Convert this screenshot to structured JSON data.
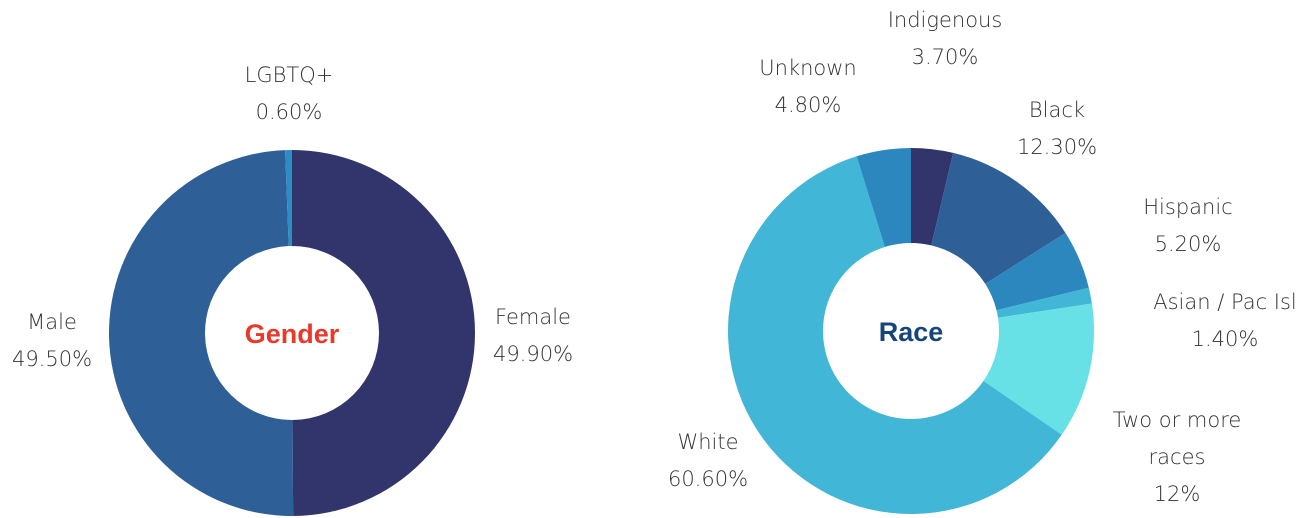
{
  "chart_data": [
    {
      "type": "donut",
      "title": "Gender",
      "categories": [
        "Female",
        "Male",
        "LGBTQ+"
      ],
      "values": [
        49.9,
        49.5,
        0.6
      ],
      "value_labels": [
        "49.90%",
        "49.50%",
        "0.60%"
      ],
      "colors": [
        "#31356b",
        "#2e5f96",
        "#2b8dc0"
      ],
      "title_color": "#e8392a"
    },
    {
      "type": "donut",
      "title": "Race",
      "categories": [
        "Indigenous",
        "Black",
        "Hispanic",
        "Asian / Pac Isl",
        "Two or more races",
        "White",
        "Unknown"
      ],
      "values": [
        3.7,
        12.3,
        5.2,
        1.4,
        12,
        60.6,
        4.8
      ],
      "value_labels": [
        "3.70%",
        "12.30%",
        "5.20%",
        "1.40%",
        "12%",
        "60.60%",
        "4.80%"
      ],
      "colors": [
        "#31356b",
        "#2e5f96",
        "#2b87bd",
        "#42b6d6",
        "#67e0e6",
        "#42b6d6",
        "#2b87bd"
      ],
      "title_color": "#16457a"
    }
  ]
}
